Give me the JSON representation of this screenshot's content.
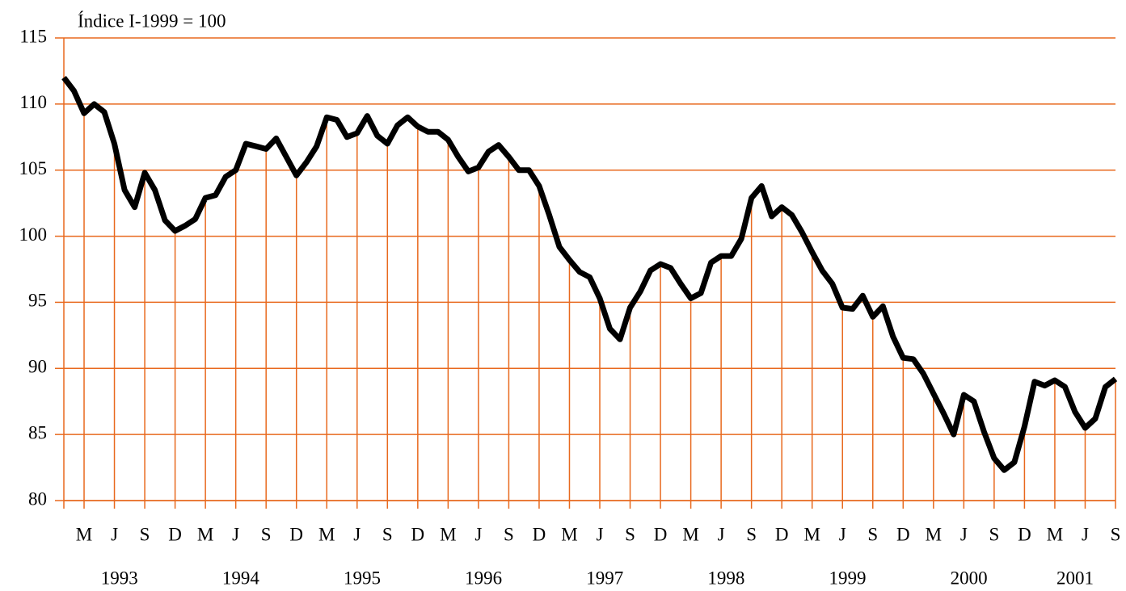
{
  "chart_data": {
    "type": "line",
    "ylabel": "Índice I-1999 = 100",
    "categories": [
      null,
      null,
      "M",
      null,
      null,
      "J",
      null,
      null,
      "S",
      null,
      null,
      "D",
      null,
      null,
      "M",
      null,
      null,
      "J",
      null,
      null,
      "S",
      null,
      null,
      "D",
      null,
      null,
      "M",
      null,
      null,
      "J",
      null,
      null,
      "S",
      null,
      null,
      "D",
      null,
      null,
      "M",
      null,
      null,
      "J",
      null,
      null,
      "S",
      null,
      null,
      "D",
      null,
      null,
      "M",
      null,
      null,
      "J",
      null,
      null,
      "S",
      null,
      null,
      "D",
      null,
      null,
      "M",
      null,
      null,
      "J",
      null,
      null,
      "S",
      null,
      null,
      "D",
      null,
      null,
      "M",
      null,
      null,
      "J",
      null,
      null,
      "S",
      null,
      null,
      "D",
      null,
      null,
      "M",
      null,
      null,
      "J",
      null,
      null,
      "S",
      null,
      null,
      "D",
      null,
      null,
      "M",
      null,
      null,
      "J",
      null,
      null,
      "S"
    ],
    "years": [
      "1993",
      "1994",
      "1995",
      "1996",
      "1997",
      "1998",
      "1999",
      "2000",
      "2001"
    ],
    "values": [
      112,
      111,
      109.3,
      110,
      109.4,
      107,
      103.5,
      102.2,
      104.8,
      103.5,
      101.2,
      100.4,
      100.8,
      101.3,
      102.9,
      103.1,
      104.5,
      105,
      107,
      106.8,
      106.6,
      107.4,
      106,
      104.6,
      105.6,
      106.8,
      109,
      108.8,
      107.5,
      107.8,
      109.1,
      107.6,
      107,
      108.4,
      109,
      108.3,
      107.9,
      107.9,
      107.3,
      106,
      104.9,
      105.2,
      106.4,
      106.9,
      106,
      105,
      105,
      103.8,
      101.6,
      99.2,
      98.2,
      97.3,
      96.9,
      95.3,
      93,
      92.2,
      94.6,
      95.8,
      97.4,
      97.9,
      97.6,
      96.4,
      95.3,
      95.7,
      98,
      98.5,
      98.5,
      99.8,
      102.9,
      103.8,
      101.5,
      102.2,
      101.6,
      100.3,
      98.8,
      97.4,
      96.4,
      94.6,
      94.5,
      95.5,
      93.9,
      94.7,
      92.4,
      90.8,
      90.7,
      89.6,
      88.1,
      86.6,
      85,
      88,
      87.5,
      85.2,
      83.2,
      82.3,
      82.9,
      85.6,
      89,
      88.7,
      89.1,
      88.6,
      86.7,
      85.5,
      86.2,
      88.6,
      89.2
    ],
    "color": "#000000",
    "grid_color": "#e8691e",
    "ylim": [
      80,
      115
    ],
    "yticks": [
      80,
      85,
      90,
      95,
      100,
      105,
      110,
      115
    ],
    "grid": true
  }
}
